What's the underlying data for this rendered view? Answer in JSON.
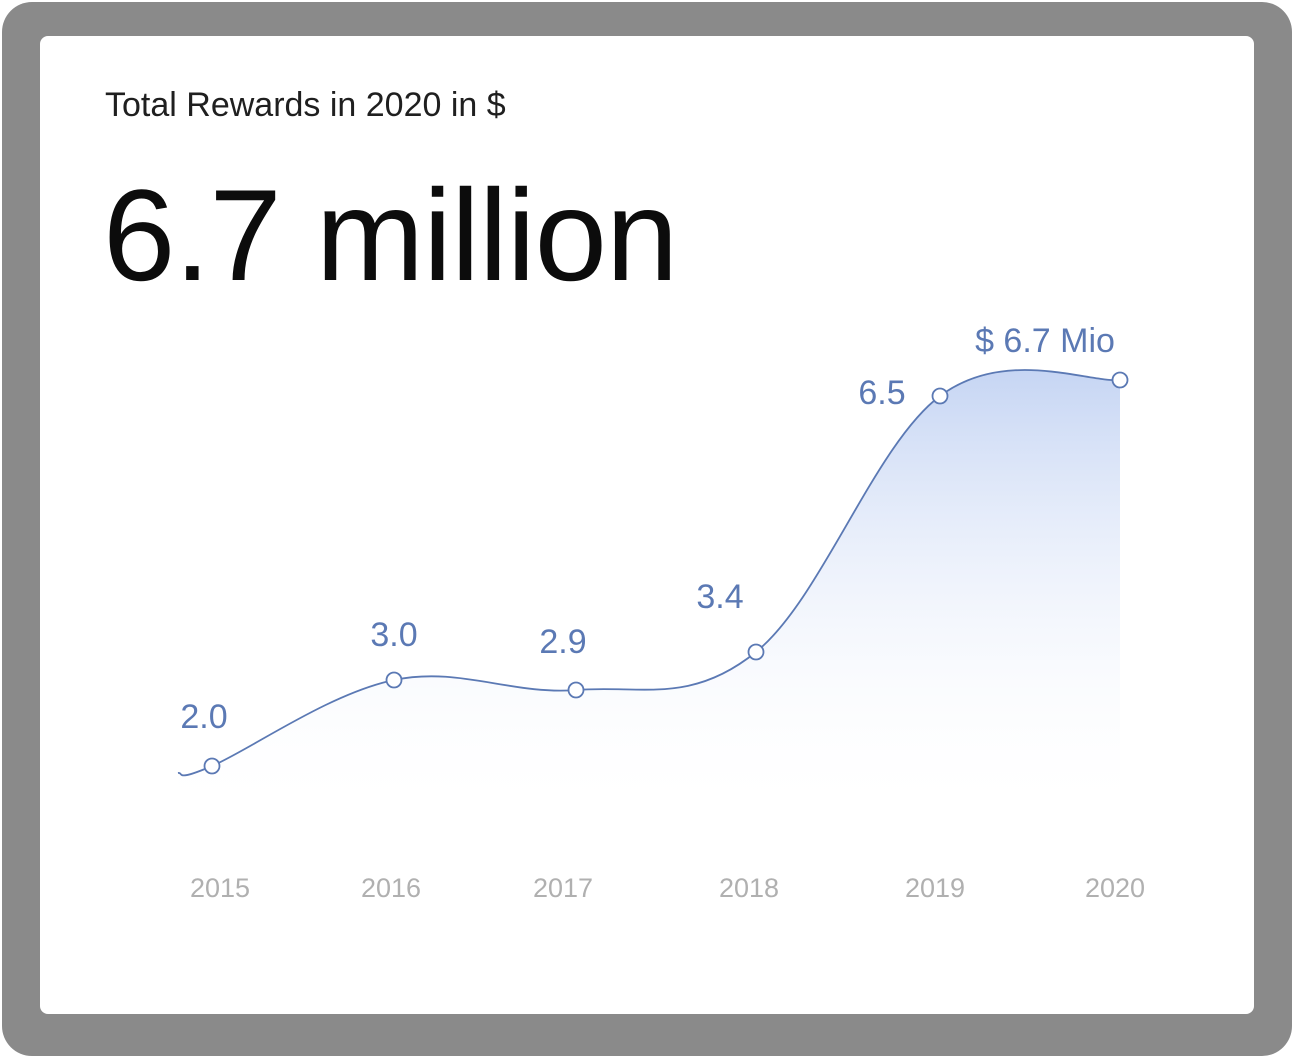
{
  "card": {
    "subtitle": "Total Rewards in 2020 in $",
    "headline": "6.7 million"
  },
  "colors": {
    "line": "#5b79b4",
    "label": "#5b79b4",
    "fill_top": "#c3d3f3",
    "axis_text": "#b0b0b0",
    "frame": "#8a8a8a"
  },
  "chart_data": {
    "type": "area",
    "categories": [
      "2015",
      "2016",
      "2017",
      "2018",
      "2019",
      "2020"
    ],
    "values": [
      2.0,
      3.0,
      2.9,
      3.4,
      6.5,
      6.7
    ],
    "data_labels": [
      "2.0",
      "3.0",
      "2.9",
      "3.4",
      "6.5",
      "$ 6.7 Mio"
    ],
    "xlabel": "",
    "ylabel": "",
    "grid": false,
    "legend": "none"
  }
}
